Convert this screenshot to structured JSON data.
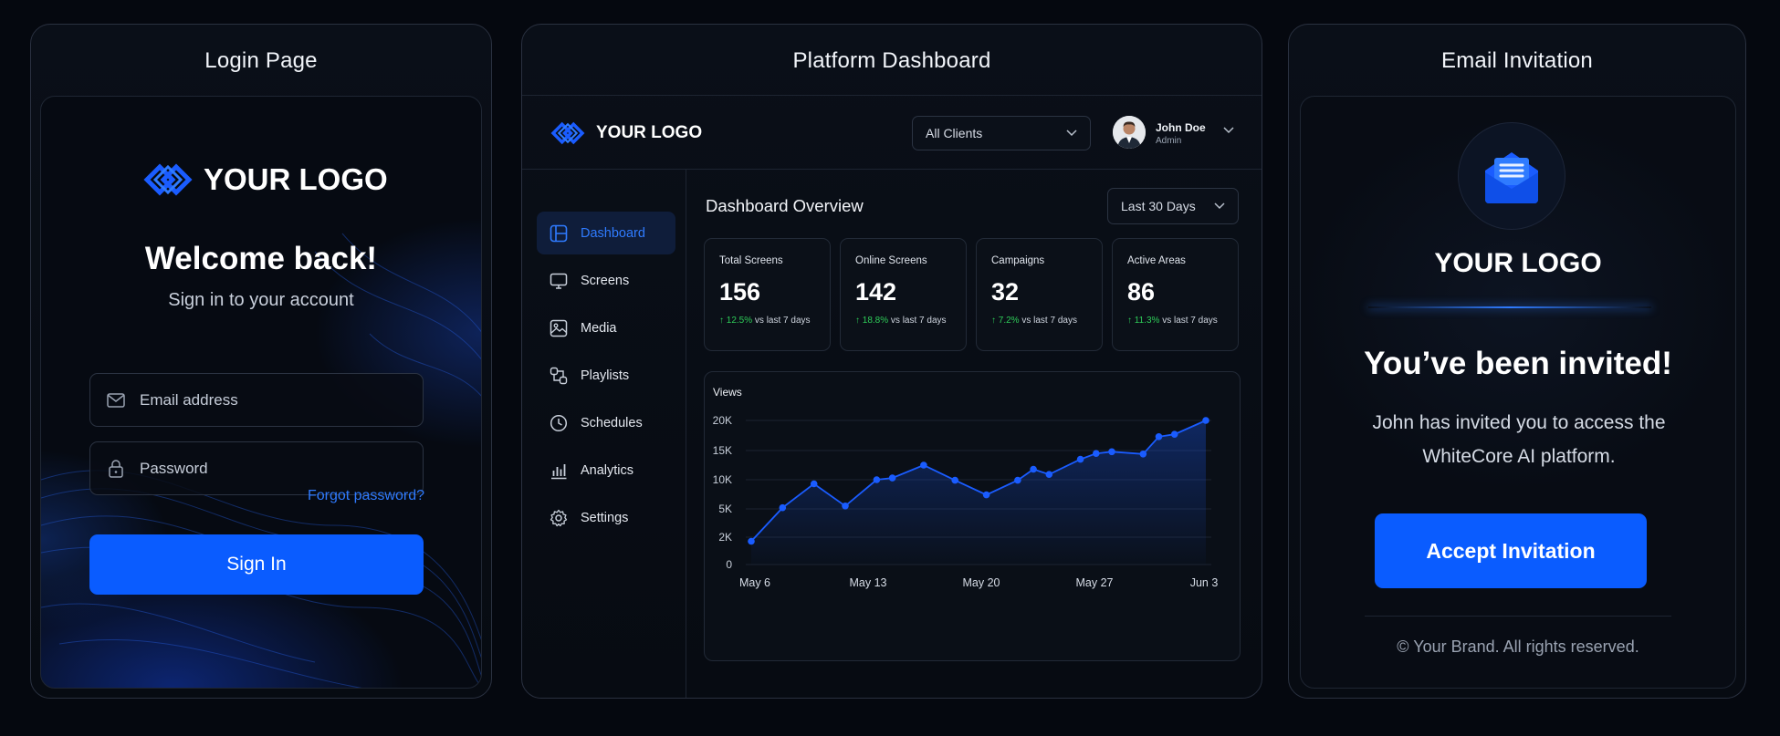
{
  "login": {
    "panel_title": "Login Page",
    "logo_text": "YOUR LOGO",
    "welcome": "Welcome back!",
    "subtitle": "Sign in to your account",
    "email_placeholder": "Email address",
    "password_placeholder": "Password",
    "forgot_link": "Forgot password?",
    "signin_label": "Sign In"
  },
  "dashboard": {
    "panel_title": "Platform Dashboard",
    "logo_text": "YOUR LOGO",
    "client_select": "All Clients",
    "user": {
      "name": "John Doe",
      "role": "Admin"
    },
    "nav": [
      {
        "label": "Dashboard",
        "icon": "dashboard-icon",
        "active": true
      },
      {
        "label": "Screens",
        "icon": "monitor-icon"
      },
      {
        "label": "Media",
        "icon": "image-icon"
      },
      {
        "label": "Playlists",
        "icon": "playlist-icon"
      },
      {
        "label": "Schedules",
        "icon": "clock-icon"
      },
      {
        "label": "Analytics",
        "icon": "bar-chart-icon"
      },
      {
        "label": "Settings",
        "icon": "gear-icon"
      }
    ],
    "overview_title": "Dashboard Overview",
    "range_select": "Last 30 Days",
    "stats": [
      {
        "label": "Total Screens",
        "value": "156",
        "delta": "12.5%",
        "period": "vs last 7 days"
      },
      {
        "label": "Online Screens",
        "value": "142",
        "delta": "18.8%",
        "period": "vs last 7 days"
      },
      {
        "label": "Campaigns",
        "value": "32",
        "delta": "7.2%",
        "period": "vs last 7 days"
      },
      {
        "label": "Active Areas",
        "value": "86",
        "delta": "11.3%",
        "period": "vs last 7 days"
      }
    ],
    "accent_color": "#0a5cff",
    "positive_color": "#2ecc58"
  },
  "chart_data": {
    "type": "area",
    "title": "Views",
    "xlabel": "",
    "ylabel": "",
    "x_ticks": [
      "May 6",
      "May 13",
      "May 20",
      "May 27",
      "Jun 3"
    ],
    "y_ticks": [
      "0",
      "2K",
      "5K",
      "10K",
      "15K",
      "20K"
    ],
    "y_tick_values": [
      0,
      2000,
      5000,
      10000,
      15000,
      20000
    ],
    "series": [
      {
        "values": [
          {
            "x": "May 6",
            "y": 1700
          },
          {
            "x": "May 8",
            "y": 5200
          },
          {
            "x": "May 10",
            "y": 9300
          },
          {
            "x": "May 12",
            "y": 5500
          },
          {
            "x": "May 14",
            "y": 10000
          },
          {
            "x": "May 15",
            "y": 10300
          },
          {
            "x": "May 17",
            "y": 12500
          },
          {
            "x": "May 19",
            "y": 9900
          },
          {
            "x": "May 21",
            "y": 7400
          },
          {
            "x": "May 23",
            "y": 9900
          },
          {
            "x": "May 24",
            "y": 11800
          },
          {
            "x": "May 25",
            "y": 10900
          },
          {
            "x": "May 27",
            "y": 13500
          },
          {
            "x": "May 28",
            "y": 14500
          },
          {
            "x": "May 29",
            "y": 14800
          },
          {
            "x": "May 31",
            "y": 14400
          },
          {
            "x": "Jun 1",
            "y": 17300
          },
          {
            "x": "Jun 2",
            "y": 17700
          },
          {
            "x": "Jun 4",
            "y": 20800
          }
        ]
      }
    ],
    "grid": true,
    "color": "#1a5cff"
  },
  "email": {
    "panel_title": "Email Invitation",
    "logo_text": "YOUR LOGO",
    "title": "You’ve been invited!",
    "message": "John has invited you to access the WhiteCore AI platform.",
    "button_label": "Accept Invitation",
    "footer": "© Your Brand. All rights reserved."
  }
}
